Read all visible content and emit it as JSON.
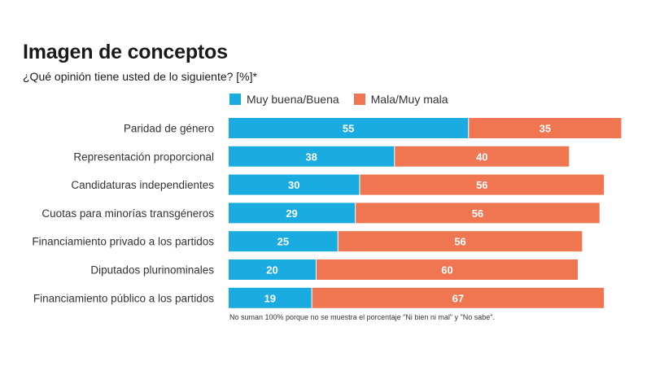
{
  "chart_data": {
    "type": "bar",
    "orientation": "horizontal",
    "stacked": true,
    "title": "Imagen de conceptos",
    "subtitle": "¿Qué opinión tiene usted de lo siguiente?  [%]*",
    "categories": [
      "Paridad de género",
      "Representación proporcional",
      "Candidaturas independientes",
      "Cuotas para minorías transgéneros",
      "Financiamiento privado a los partidos",
      "Diputados plurinominales",
      "Financiamiento público a los partidos"
    ],
    "series": [
      {
        "name": "Muy buena/Buena",
        "color": "#1aace0",
        "values": [
          55,
          38,
          30,
          29,
          25,
          20,
          19
        ]
      },
      {
        "name": "Mala/Muy mala",
        "color": "#ef7651",
        "values": [
          35,
          40,
          56,
          56,
          56,
          60,
          67
        ]
      }
    ],
    "xlim": [
      0,
      100
    ],
    "grid": false,
    "legend_placement": "top",
    "note": "No suman 100% porque no se muestra el porcentaje \"Ni bien ni mal\" y \"No sabe\"."
  }
}
